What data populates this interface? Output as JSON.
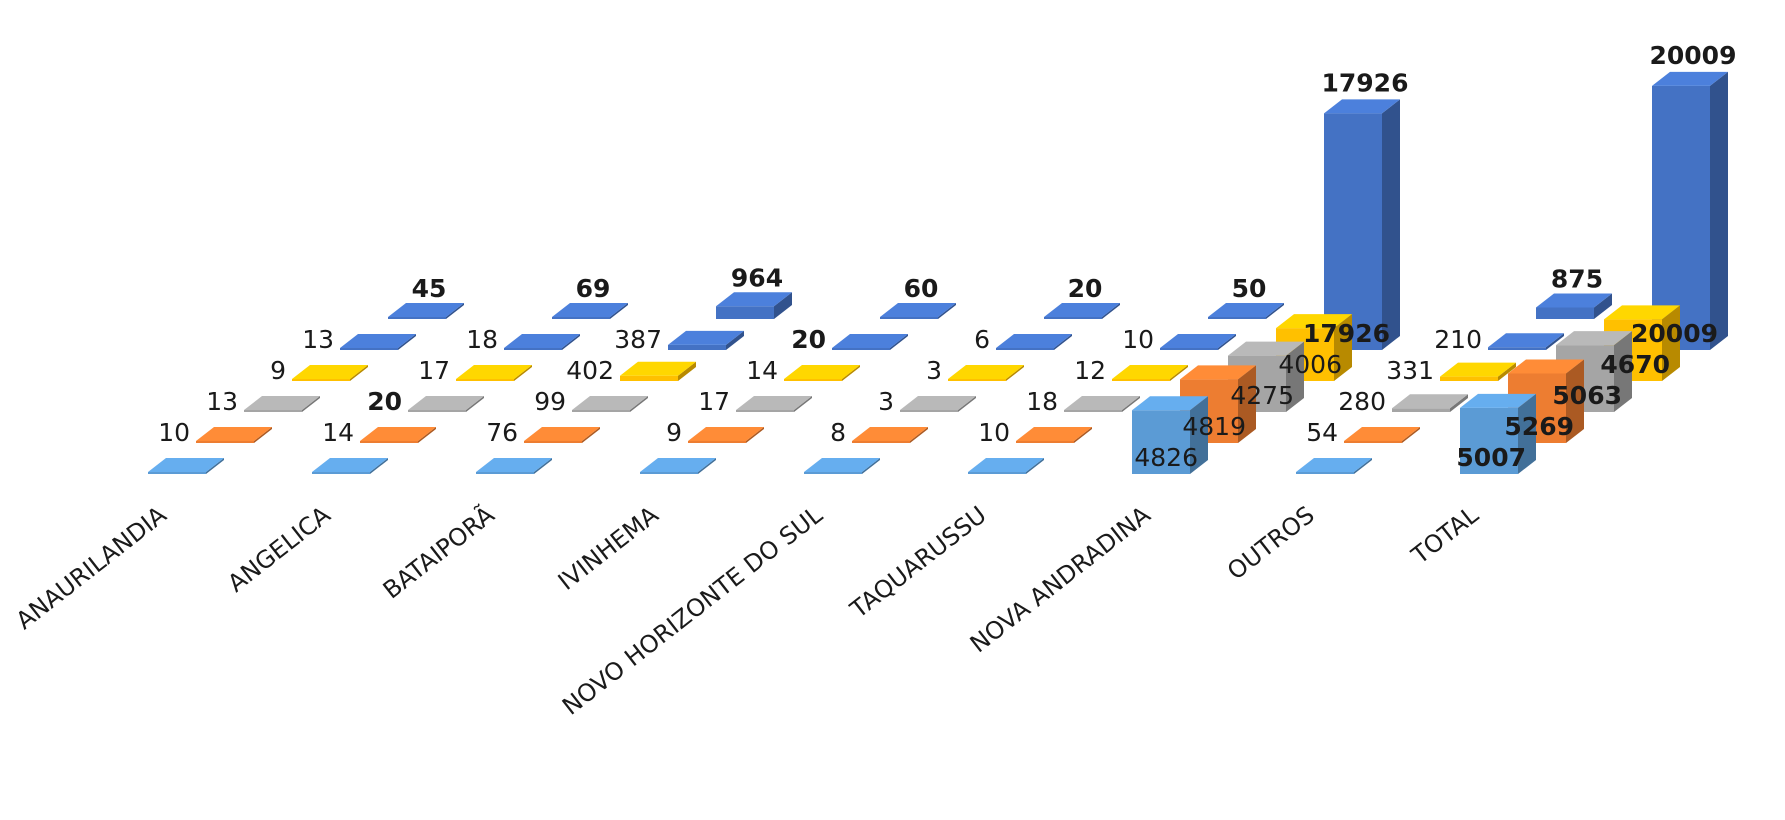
{
  "chart_data": {
    "type": "bar",
    "categories": [
      "ANAURILANDIA",
      "ANGELICA",
      "BATAIPORÃ",
      "IVINHEMA",
      "NOVO HORIZONTE DO SUL",
      "TAQUARUSSU",
      "NOVA ANDRADINA",
      "OUTROS",
      "TOTAL"
    ],
    "series": [
      {
        "color": "#5b9bd5",
        "values": [
          0,
          0,
          0,
          0,
          0,
          0,
          4826,
          0,
          5007
        ],
        "labels": [
          "",
          "",
          "",
          "",
          "",
          "",
          "4826",
          "",
          "5007"
        ]
      },
      {
        "color": "#ed7d31",
        "values": [
          10,
          14,
          76,
          9,
          8,
          10,
          4819,
          54,
          5269
        ],
        "labels": [
          "10",
          "14",
          "76",
          "9",
          "8",
          "10",
          "4819",
          "54",
          "5269"
        ]
      },
      {
        "color": "#a5a5a5",
        "values": [
          13,
          20,
          99,
          17,
          3,
          18,
          4275,
          280,
          5063
        ],
        "labels": [
          "13",
          "20",
          "99",
          "17",
          "3",
          "18",
          "4275",
          "280",
          "5063"
        ]
      },
      {
        "color": "#ffc000",
        "values": [
          9,
          17,
          402,
          14,
          3,
          12,
          4006,
          331,
          4670
        ],
        "labels": [
          "9",
          "17",
          "402",
          "14",
          "3",
          "12",
          "4006",
          "331",
          "4670"
        ]
      },
      {
        "color": "#4472c4",
        "values": [
          13,
          18,
          387,
          20,
          6,
          10,
          17926,
          210,
          20009
        ],
        "labels": [
          "13",
          "18",
          "387",
          "20",
          "6",
          "10",
          "17926",
          "210",
          "20009"
        ]
      },
      {
        "color": "#4472c4",
        "values": [
          45,
          69,
          964,
          60,
          20,
          50,
          null,
          875,
          null
        ],
        "labels": [
          "45",
          "69",
          "964",
          "60",
          "20",
          "50",
          "",
          "875",
          ""
        ]
      }
    ],
    "bold_labels": [
      "45",
      "69",
      "964",
      "60",
      "20",
      "50",
      "875",
      "17926",
      "20009",
      "4670",
      "5063",
      "5269",
      "5007"
    ],
    "grid": false,
    "legend": "none"
  }
}
